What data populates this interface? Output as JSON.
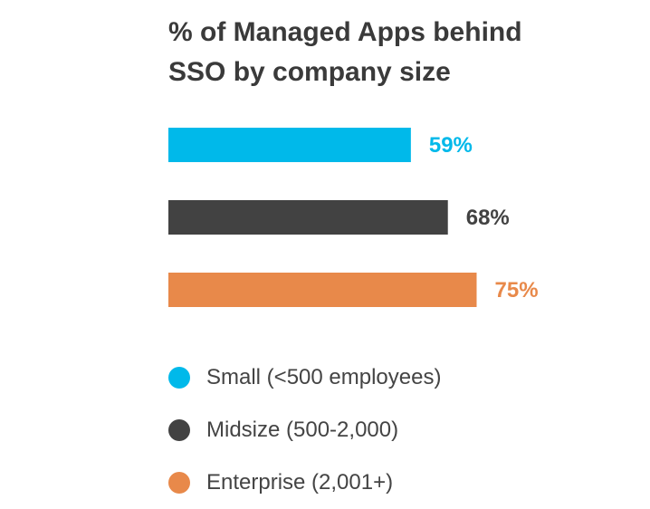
{
  "chart_data": {
    "type": "bar",
    "orientation": "horizontal",
    "title_lines": [
      "% of Managed Apps behind",
      "SSO by company size"
    ],
    "categories": [
      "Small (<500 employees)",
      "Midsize (500-2,000)",
      "Enterprise (2,001+)"
    ],
    "values": [
      59,
      68,
      75
    ],
    "value_labels": [
      "59%",
      "68%",
      "75%"
    ],
    "colors": [
      "#00b9ea",
      "#424242",
      "#e8894a"
    ],
    "xlim": [
      0,
      100
    ],
    "grid": false,
    "axes_visible": false,
    "legend_position": "bottom"
  }
}
